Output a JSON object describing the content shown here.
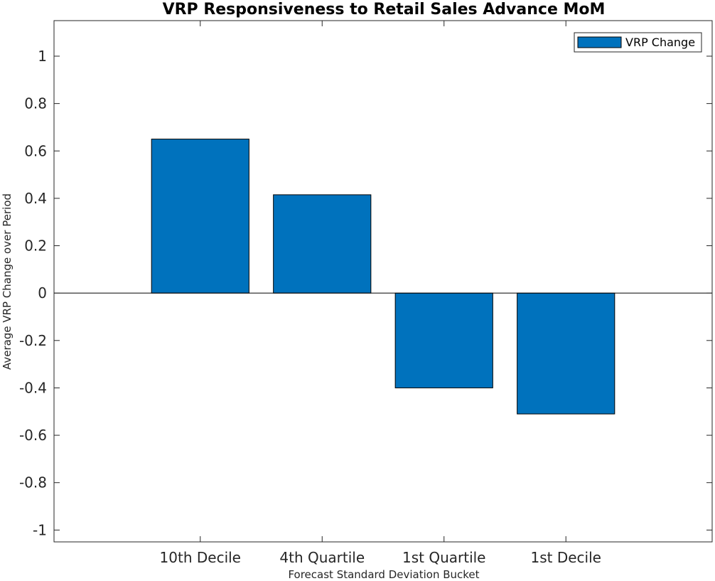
{
  "chart_data": {
    "type": "bar",
    "title": "VRP Responsiveness to Retail Sales Advance MoM",
    "xlabel": "Forecast Standard Deviation Bucket",
    "ylabel": "Average VRP Change over Period",
    "categories": [
      "10th Decile",
      "4th Quartile",
      "1st Quartile",
      "1st Decile"
    ],
    "series": [
      {
        "name": "VRP Change",
        "values": [
          0.65,
          0.415,
          -0.4,
          -0.51
        ],
        "color": "#0072BD"
      }
    ],
    "ylim": [
      -1.05,
      1.15
    ],
    "yticks": [
      -1,
      -0.8,
      -0.6,
      -0.4,
      -0.2,
      0,
      0.2,
      0.4,
      0.6,
      0.8,
      1
    ],
    "ytick_labels": [
      "-1",
      "-0.8",
      "-0.6",
      "-0.4",
      "-0.2",
      "0",
      "0.2",
      "0.4",
      "0.6",
      "0.8",
      "1"
    ],
    "grid": false,
    "legend": "top-right"
  }
}
